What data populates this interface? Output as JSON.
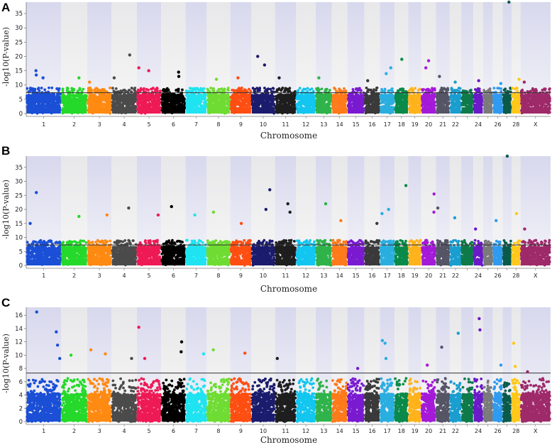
{
  "chart_data": [
    {
      "type": "scatter",
      "panel_label": "A",
      "ylabel": "-log10(P-value)",
      "xlabel": "Chromosome",
      "ylim": [
        0,
        39
      ],
      "yticks": [
        0,
        5,
        10,
        15,
        20,
        25,
        30,
        35
      ],
      "threshold": 7.3,
      "chromosome_tick_labels": [
        "1",
        "2",
        "3",
        "4",
        "5",
        "6",
        "7",
        "8",
        "9",
        "10",
        "11",
        "12",
        "13",
        "14",
        "15",
        "16",
        "17",
        "18",
        "19",
        "20",
        "21",
        "22",
        "24",
        "26",
        "28",
        "X"
      ],
      "peaks": [
        {
          "chr": "1",
          "y": 15
        },
        {
          "chr": "1",
          "y": 13.5
        },
        {
          "chr": "1",
          "y": 12.5
        },
        {
          "chr": "2",
          "y": 12.5
        },
        {
          "chr": "3",
          "y": 11
        },
        {
          "chr": "4",
          "y": 20.5
        },
        {
          "chr": "4",
          "y": 12.5
        },
        {
          "chr": "5",
          "y": 16
        },
        {
          "chr": "5",
          "y": 15
        },
        {
          "chr": "6",
          "y": 14.5
        },
        {
          "chr": "6",
          "y": 13
        },
        {
          "chr": "8",
          "y": 12
        },
        {
          "chr": "9",
          "y": 12.5
        },
        {
          "chr": "10",
          "y": 20
        },
        {
          "chr": "10",
          "y": 17
        },
        {
          "chr": "11",
          "y": 12.5
        },
        {
          "chr": "13",
          "y": 12.5
        },
        {
          "chr": "16",
          "y": 11.5
        },
        {
          "chr": "17",
          "y": 16
        },
        {
          "chr": "17",
          "y": 14
        },
        {
          "chr": "18",
          "y": 19
        },
        {
          "chr": "20",
          "y": 18.5
        },
        {
          "chr": "20",
          "y": 16
        },
        {
          "chr": "21",
          "y": 13
        },
        {
          "chr": "22",
          "y": 11
        },
        {
          "chr": "24",
          "y": 11.5
        },
        {
          "chr": "26",
          "y": 10.5
        },
        {
          "chr": "27",
          "y": 39
        },
        {
          "chr": "28",
          "y": 12
        },
        {
          "chr": "X",
          "y": 11
        }
      ]
    },
    {
      "type": "scatter",
      "panel_label": "B",
      "ylabel": "-log10(P-value)",
      "xlabel": "Chromosome",
      "ylim": [
        0,
        39
      ],
      "yticks": [
        0,
        5,
        10,
        15,
        20,
        25,
        30,
        35
      ],
      "threshold": 7.3,
      "chromosome_tick_labels": [
        "1",
        "2",
        "3",
        "4",
        "5",
        "6",
        "7",
        "8",
        "9",
        "10",
        "11",
        "12",
        "13",
        "14",
        "15",
        "16",
        "17",
        "18",
        "19",
        "20",
        "21",
        "22",
        "24",
        "26",
        "28",
        "X"
      ],
      "peaks": [
        {
          "chr": "1",
          "y": 26
        },
        {
          "chr": "1",
          "y": 15
        },
        {
          "chr": "2",
          "y": 17.5
        },
        {
          "chr": "3",
          "y": 18
        },
        {
          "chr": "4",
          "y": 20.5
        },
        {
          "chr": "5",
          "y": 18
        },
        {
          "chr": "6",
          "y": 21
        },
        {
          "chr": "7",
          "y": 18
        },
        {
          "chr": "8",
          "y": 19
        },
        {
          "chr": "9",
          "y": 15
        },
        {
          "chr": "10",
          "y": 27
        },
        {
          "chr": "10",
          "y": 20
        },
        {
          "chr": "11",
          "y": 22
        },
        {
          "chr": "11",
          "y": 19
        },
        {
          "chr": "13",
          "y": 22
        },
        {
          "chr": "14",
          "y": 16
        },
        {
          "chr": "16",
          "y": 15
        },
        {
          "chr": "17",
          "y": 20
        },
        {
          "chr": "17",
          "y": 18.5
        },
        {
          "chr": "18",
          "y": 28.5
        },
        {
          "chr": "20",
          "y": 25.5
        },
        {
          "chr": "20",
          "y": 19
        },
        {
          "chr": "21",
          "y": 20.5
        },
        {
          "chr": "22",
          "y": 17
        },
        {
          "chr": "24",
          "y": 13
        },
        {
          "chr": "26",
          "y": 16
        },
        {
          "chr": "27",
          "y": 39
        },
        {
          "chr": "28",
          "y": 18.5
        },
        {
          "chr": "X",
          "y": 13
        }
      ]
    },
    {
      "type": "scatter",
      "panel_label": "C",
      "ylabel": "-log10(P-value)",
      "xlabel": "Chromosome",
      "ylim": [
        0,
        17.2
      ],
      "yticks": [
        0,
        2,
        4,
        6,
        8,
        10,
        12,
        14,
        16
      ],
      "threshold": 7.3,
      "chromosome_tick_labels": [
        "1",
        "2",
        "3",
        "4",
        "5",
        "6",
        "7",
        "8",
        "9",
        "10",
        "11",
        "12",
        "13",
        "14",
        "15",
        "16",
        "17",
        "18",
        "19",
        "20",
        "21",
        "22",
        "24",
        "26",
        "28",
        "X"
      ],
      "peaks": [
        {
          "chr": "1",
          "y": 16.5
        },
        {
          "chr": "1",
          "y": 13.5
        },
        {
          "chr": "1",
          "y": 11.5
        },
        {
          "chr": "1",
          "y": 9.5
        },
        {
          "chr": "2",
          "y": 10
        },
        {
          "chr": "3",
          "y": 10.8
        },
        {
          "chr": "3",
          "y": 10.2
        },
        {
          "chr": "4",
          "y": 9.5
        },
        {
          "chr": "5",
          "y": 14.2
        },
        {
          "chr": "5",
          "y": 9.5
        },
        {
          "chr": "6",
          "y": 12
        },
        {
          "chr": "6",
          "y": 10.5
        },
        {
          "chr": "7",
          "y": 10.2
        },
        {
          "chr": "8",
          "y": 10.8
        },
        {
          "chr": "9",
          "y": 10.3
        },
        {
          "chr": "11",
          "y": 9.5
        },
        {
          "chr": "15",
          "y": 8
        },
        {
          "chr": "17",
          "y": 12.2
        },
        {
          "chr": "17",
          "y": 11.8
        },
        {
          "chr": "17",
          "y": 9.5
        },
        {
          "chr": "20",
          "y": 8.5
        },
        {
          "chr": "21",
          "y": 11.2
        },
        {
          "chr": "22",
          "y": 13.3
        },
        {
          "chr": "24",
          "y": 15.5
        },
        {
          "chr": "24",
          "y": 13.8
        },
        {
          "chr": "26",
          "y": 8.5
        },
        {
          "chr": "28",
          "y": 11.8
        },
        {
          "chr": "28",
          "y": 8.3
        },
        {
          "chr": "X",
          "y": 7.5
        }
      ]
    }
  ],
  "colors": {
    "chromosomes": [
      "#1a4fd6",
      "#25d92a",
      "#ff8a12",
      "#4b4b4b",
      "#ee1a55",
      "#000000",
      "#1fe3f0",
      "#6fdc33",
      "#ff4e12",
      "#1c1c6e",
      "#1e1e1e",
      "#12c6f0",
      "#2fb34a",
      "#ff7a1a",
      "#7a1ad0",
      "#3a3a3a",
      "#2aaee0",
      "#0a8a4a",
      "#ffb21a",
      "#a41ad8",
      "#555566",
      "#1a9ed0",
      "#0e7a4a",
      "#6a1ac8",
      "#7a7a7a",
      "#2f9bf0",
      "#0b5a4a",
      "#ffc81a",
      "#9e2a6a"
    ],
    "shade_dark": "#e6e6f2",
    "shade_light": "#f0f0f0",
    "threshold_line": "#333333"
  }
}
